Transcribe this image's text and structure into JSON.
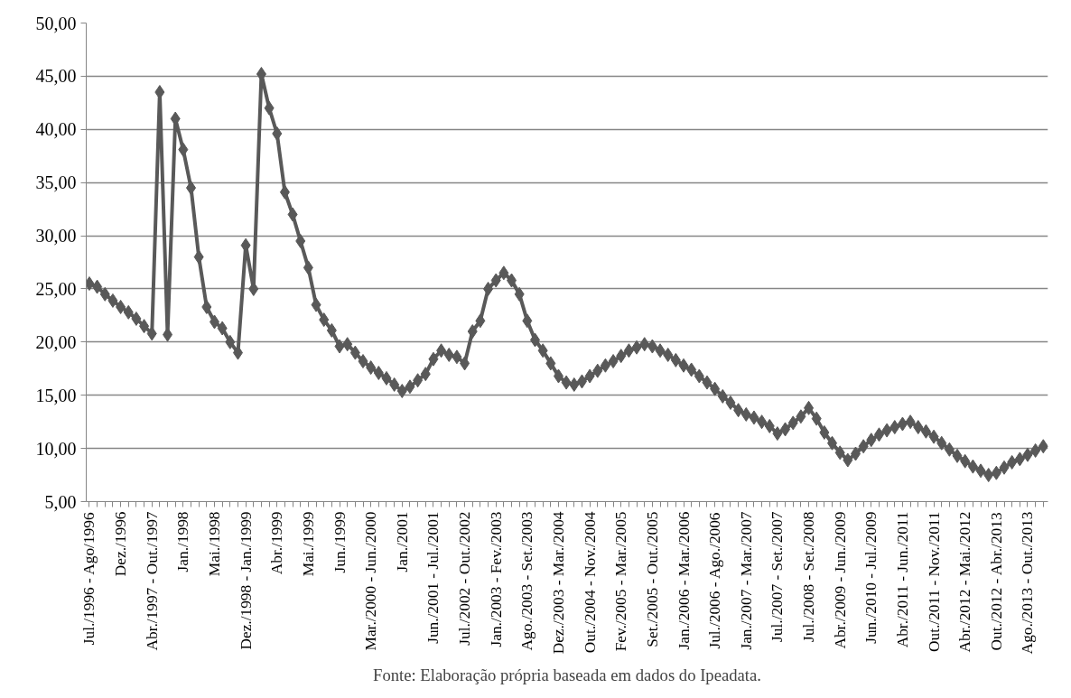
{
  "chart_data": {
    "type": "line",
    "categories": [
      "Jul./1996 - Ago/1996",
      null,
      null,
      null,
      "Dez./1996",
      null,
      null,
      null,
      "Abr./1997 - Out./1997",
      null,
      null,
      null,
      "Jan./1998",
      null,
      null,
      null,
      "Mai./1998",
      null,
      null,
      null,
      "Dez./1998 - Jan./1999",
      null,
      null,
      null,
      "Abr./1999",
      null,
      null,
      null,
      "Mai./1999",
      null,
      null,
      null,
      "Jun./1999",
      null,
      null,
      null,
      "Mar./2000 - Jun./2000",
      null,
      null,
      null,
      "Jan./2001",
      null,
      null,
      null,
      "Jun./2001 - Jul./2001",
      null,
      null,
      null,
      "Jul./2002 - Out./2002",
      null,
      null,
      null,
      "Jan./2003 - Fev./2003",
      null,
      null,
      null,
      "Ago./2003 - Set./2003",
      null,
      null,
      null,
      "Dez./2003 - Mar./2004",
      null,
      null,
      null,
      "Out./2004 - Nov./2004",
      null,
      null,
      null,
      "Fev./2005 - Mar./2005",
      null,
      null,
      null,
      "Set./2005 - Out./2005",
      null,
      null,
      null,
      "Jan./2006 - Mar./2006",
      null,
      null,
      null,
      "Jul./2006 - Ago./2006",
      null,
      null,
      null,
      "Jan./2007 - Mar./2007",
      null,
      null,
      null,
      "Jul./2007 - Set./2007",
      null,
      null,
      null,
      "Jul./2008 - Set./2008",
      null,
      null,
      null,
      "Abr./2009 - Jun./2009",
      null,
      null,
      null,
      "Jun./2010 - Jul./2009",
      null,
      null,
      null,
      "Abr./2011 - Jun./2011",
      null,
      null,
      null,
      "Out./2011 - Nov./2011",
      null,
      null,
      null,
      "Abr./2012 - Mai./2012",
      null,
      null,
      null,
      "Out./2012 - Abr./2013",
      null,
      null,
      null,
      "Ago./2013 - Out./2013",
      null,
      null
    ],
    "series": [
      {
        "color": "#595959",
        "values": [
          25.5,
          25.2,
          24.5,
          23.9,
          23.3,
          22.8,
          22.2,
          21.5,
          20.8,
          43.5,
          20.7,
          41.0,
          38.1,
          34.5,
          28.0,
          23.3,
          21.9,
          21.3,
          20.0,
          19.0,
          29.1,
          25.0,
          45.2,
          42.0,
          39.6,
          34.1,
          32.0,
          29.5,
          27.0,
          23.5,
          22.1,
          21.1,
          19.6,
          19.8,
          19.0,
          18.2,
          17.6,
          17.1,
          16.6,
          16.0,
          15.4,
          15.8,
          16.4,
          17.0,
          18.4,
          19.2,
          18.8,
          18.6,
          18.0,
          21.0,
          22.0,
          25.0,
          25.8,
          26.5,
          25.8,
          24.5,
          22.0,
          20.2,
          19.2,
          18.0,
          16.8,
          16.2,
          16.0,
          16.3,
          16.8,
          17.3,
          17.8,
          18.2,
          18.7,
          19.2,
          19.5,
          19.8,
          19.6,
          19.2,
          18.8,
          18.3,
          17.8,
          17.4,
          16.8,
          16.2,
          15.6,
          14.9,
          14.3,
          13.6,
          13.2,
          12.9,
          12.5,
          12.1,
          11.4,
          11.8,
          12.4,
          13.0,
          13.8,
          12.8,
          11.5,
          10.5,
          9.6,
          8.9,
          9.5,
          10.2,
          10.8,
          11.3,
          11.7,
          12.0,
          12.3,
          12.5,
          12.0,
          11.6,
          11.1,
          10.5,
          9.9,
          9.3,
          8.8,
          8.3,
          7.9,
          7.5,
          7.7,
          8.2,
          8.7,
          9.0,
          9.4,
          9.8,
          10.2
        ]
      }
    ],
    "ylim": [
      5,
      50
    ],
    "yticks": [
      {
        "value": 5,
        "label": "5,00"
      },
      {
        "value": 10,
        "label": "10,00"
      },
      {
        "value": 15,
        "label": "15,00"
      },
      {
        "value": 20,
        "label": "20,00"
      },
      {
        "value": 25,
        "label": "25,00"
      },
      {
        "value": 30,
        "label": "30,00"
      },
      {
        "value": 35,
        "label": "35,00"
      },
      {
        "value": 40,
        "label": "40,00"
      },
      {
        "value": 45,
        "label": "45,00"
      },
      {
        "value": 50,
        "label": "50,00"
      }
    ],
    "grid": "y",
    "marker": "diamond",
    "line_style": "solid",
    "annotations": [
      "Fonte: Elaboração própria baseada em dados do Ipeadata."
    ]
  }
}
